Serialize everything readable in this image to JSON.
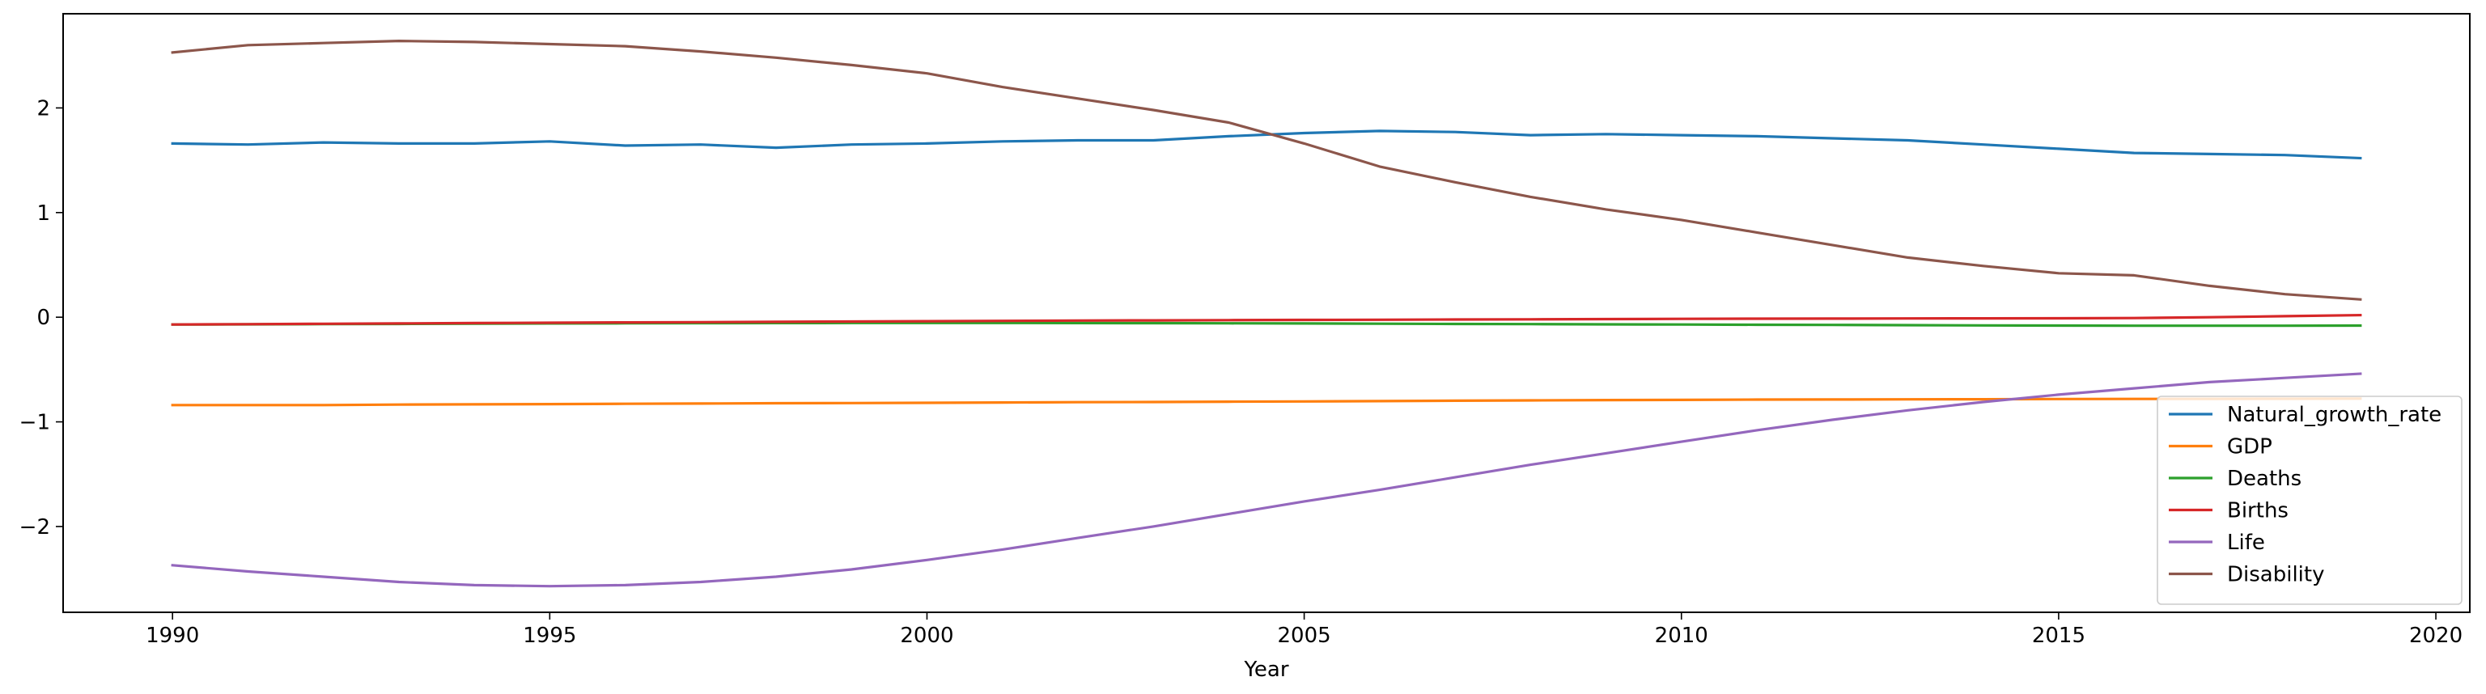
{
  "chart_data": {
    "type": "line",
    "title": "",
    "xlabel": "Year",
    "ylabel": "",
    "xlim": [
      1988.55,
      2020.45
    ],
    "ylim": [
      -2.82,
      2.9
    ],
    "xticks": [
      1990,
      1995,
      2000,
      2005,
      2010,
      2015,
      2020
    ],
    "yticks": [
      -2,
      -1,
      0,
      1,
      2
    ],
    "grid": false,
    "legend_position": "lower-right",
    "x": [
      1990,
      1991,
      1992,
      1993,
      1994,
      1995,
      1996,
      1997,
      1998,
      1999,
      2000,
      2001,
      2002,
      2003,
      2004,
      2005,
      2006,
      2007,
      2008,
      2009,
      2010,
      2011,
      2012,
      2013,
      2014,
      2015,
      2016,
      2017,
      2018,
      2019
    ],
    "series": [
      {
        "name": "Natural_growth_rate",
        "color": "#1f77b4",
        "values": [
          1.66,
          1.65,
          1.67,
          1.66,
          1.66,
          1.68,
          1.64,
          1.65,
          1.62,
          1.65,
          1.66,
          1.68,
          1.69,
          1.69,
          1.73,
          1.76,
          1.78,
          1.77,
          1.74,
          1.75,
          1.74,
          1.73,
          1.71,
          1.69,
          1.65,
          1.61,
          1.57,
          1.56,
          1.55,
          1.52
        ]
      },
      {
        "name": "GDP",
        "color": "#ff7f0e",
        "values": [
          -0.84,
          -0.84,
          -0.84,
          -0.835,
          -0.833,
          -0.83,
          -0.827,
          -0.825,
          -0.822,
          -0.82,
          -0.818,
          -0.815,
          -0.812,
          -0.81,
          -0.807,
          -0.805,
          -0.802,
          -0.798,
          -0.795,
          -0.792,
          -0.79,
          -0.787,
          -0.786,
          -0.785,
          -0.784,
          -0.782,
          -0.781,
          -0.78,
          -0.779,
          -0.778
        ]
      },
      {
        "name": "Deaths",
        "color": "#2ca02c",
        "values": [
          -0.07,
          -0.068,
          -0.066,
          -0.064,
          -0.062,
          -0.06,
          -0.058,
          -0.057,
          -0.056,
          -0.055,
          -0.055,
          -0.055,
          -0.056,
          -0.057,
          -0.058,
          -0.06,
          -0.062,
          -0.064,
          -0.066,
          -0.068,
          -0.07,
          -0.072,
          -0.074,
          -0.076,
          -0.078,
          -0.08,
          -0.081,
          -0.081,
          -0.081,
          -0.08
        ]
      },
      {
        "name": "Births",
        "color": "#d62728",
        "values": [
          -0.07,
          -0.067,
          -0.063,
          -0.06,
          -0.056,
          -0.053,
          -0.05,
          -0.047,
          -0.044,
          -0.041,
          -0.038,
          -0.035,
          -0.032,
          -0.03,
          -0.028,
          -0.026,
          -0.024,
          -0.022,
          -0.02,
          -0.018,
          -0.016,
          -0.014,
          -0.013,
          -0.012,
          -0.011,
          -0.01,
          -0.008,
          0.0,
          0.01,
          0.02
        ]
      },
      {
        "name": "Life",
        "color": "#9467bd",
        "values": [
          -2.37,
          -2.43,
          -2.48,
          -2.53,
          -2.56,
          -2.57,
          -2.56,
          -2.53,
          -2.48,
          -2.41,
          -2.32,
          -2.22,
          -2.11,
          -2.0,
          -1.88,
          -1.76,
          -1.65,
          -1.53,
          -1.41,
          -1.3,
          -1.19,
          -1.08,
          -0.98,
          -0.89,
          -0.81,
          -0.74,
          -0.68,
          -0.62,
          -0.58,
          -0.54
        ]
      },
      {
        "name": "Disability",
        "color": "#8c564b",
        "values": [
          2.53,
          2.6,
          2.62,
          2.64,
          2.63,
          2.61,
          2.59,
          2.54,
          2.48,
          2.41,
          2.33,
          2.2,
          2.09,
          1.98,
          1.86,
          1.66,
          1.44,
          1.29,
          1.15,
          1.03,
          0.93,
          0.81,
          0.69,
          0.57,
          0.49,
          0.42,
          0.4,
          0.3,
          0.22,
          0.17
        ]
      }
    ]
  }
}
